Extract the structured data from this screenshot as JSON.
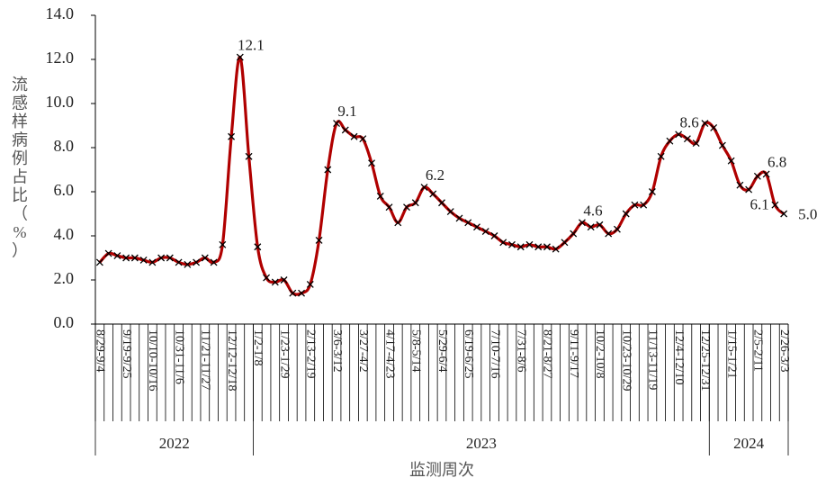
{
  "chart_data": {
    "type": "line",
    "y_label": "流感样病例占比（%）",
    "x_label": "监测周次",
    "categories": [
      "8/29-9/4",
      null,
      null,
      "9/19-9/25",
      null,
      null,
      "10/10-10/16",
      null,
      null,
      "10/31-11/6",
      null,
      null,
      "11/21-11/27",
      null,
      null,
      "12/12-12/18",
      null,
      null,
      "1/2-1/8",
      null,
      null,
      "1/23-1/29",
      null,
      null,
      "2/13-2/19",
      null,
      null,
      "3/6-3/12",
      null,
      null,
      "3/27-4/2",
      null,
      null,
      "4/17-4/23",
      null,
      null,
      "5/8-5/14",
      null,
      null,
      "5/29-6/4",
      null,
      null,
      "6/19-6/25",
      null,
      null,
      "7/10-7/16",
      null,
      null,
      "7/31-8/6",
      null,
      null,
      "8/21-8/27",
      null,
      null,
      "9/11-9/17",
      null,
      null,
      "10/2-10/8",
      null,
      null,
      "10/23-10/29",
      null,
      null,
      "11/13-11/19",
      null,
      null,
      "12/4-12/10",
      null,
      null,
      "12/25-12/31",
      null,
      null,
      "1/15-1/21",
      null,
      null,
      "2/5-2/11",
      null,
      null,
      "2/26-3/3"
    ],
    "groups": [
      {
        "label": "2022",
        "count": 18
      },
      {
        "label": "2023",
        "count": 52
      },
      {
        "label": "2024",
        "count": 9
      }
    ],
    "series": [
      {
        "name": "流感样病例占比",
        "color": "#b00000",
        "values": [
          2.8,
          3.2,
          3.1,
          3.0,
          3.0,
          2.9,
          2.8,
          3.0,
          3.0,
          2.8,
          2.7,
          2.8,
          3.0,
          2.8,
          3.6,
          8.5,
          12.1,
          7.6,
          3.5,
          2.1,
          1.9,
          2.0,
          1.4,
          1.4,
          1.8,
          3.8,
          7.0,
          9.1,
          8.8,
          8.5,
          8.4,
          7.3,
          5.8,
          5.3,
          4.6,
          5.3,
          5.5,
          6.2,
          5.9,
          5.5,
          5.1,
          4.8,
          4.6,
          4.4,
          4.2,
          4.0,
          3.7,
          3.6,
          3.5,
          3.6,
          3.5,
          3.5,
          3.4,
          3.7,
          4.1,
          4.6,
          4.4,
          4.5,
          4.1,
          4.3,
          5.0,
          5.4,
          5.4,
          6.0,
          7.6,
          8.3,
          8.6,
          8.4,
          8.2,
          9.1,
          8.9,
          8.1,
          7.4,
          6.3,
          6.1,
          6.7,
          6.8,
          5.4,
          5.0
        ],
        "value_labels": [
          null,
          null,
          null,
          null,
          null,
          null,
          null,
          null,
          null,
          null,
          null,
          null,
          null,
          null,
          null,
          null,
          "12.1",
          null,
          null,
          null,
          null,
          null,
          null,
          null,
          null,
          null,
          null,
          "9.1",
          null,
          null,
          null,
          null,
          null,
          null,
          null,
          null,
          null,
          "6.2",
          null,
          null,
          null,
          null,
          null,
          null,
          null,
          null,
          null,
          null,
          null,
          null,
          null,
          null,
          null,
          null,
          null,
          "4.6",
          null,
          null,
          null,
          null,
          null,
          null,
          null,
          null,
          null,
          null,
          "8.6",
          null,
          null,
          null,
          null,
          null,
          null,
          null,
          "6.1",
          null,
          "6.8",
          null,
          "5.0"
        ]
      }
    ],
    "ylim": [
      0,
      14
    ],
    "yticks": [
      {
        "value": 0,
        "label": "0.0"
      },
      {
        "value": 2,
        "label": "2.0"
      },
      {
        "value": 4,
        "label": "4.0"
      },
      {
        "value": 6,
        "label": "6.0"
      },
      {
        "value": 8,
        "label": "8.0"
      },
      {
        "value": 10,
        "label": "10.0"
      },
      {
        "value": 12,
        "label": "12.0"
      },
      {
        "value": 14,
        "label": "14.0"
      }
    ]
  }
}
